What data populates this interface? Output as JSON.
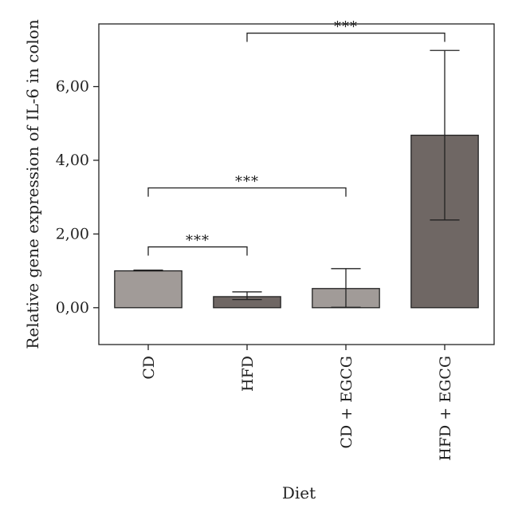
{
  "chart_data": {
    "type": "bar",
    "title": "",
    "xlabel": "Diet",
    "ylabel": "Relative gene expression of IL-6 in colon",
    "categories": [
      "CD",
      "HFD",
      "CD + EGCG",
      "HFD + EGCG"
    ],
    "series": [
      {
        "values": [
          1.0,
          0.3,
          0.52,
          4.68
        ],
        "error_upper": [
          1.02,
          0.43,
          1.06,
          6.98
        ],
        "error_lower": [
          1.0,
          0.22,
          0.01,
          2.38
        ]
      }
    ],
    "bar_colors": [
      "#a19b98",
      "#6f6764",
      "#a19b98",
      "#6f6764"
    ],
    "ylim": [
      -1.0,
      7.7
    ],
    "yticks": [
      0,
      2,
      4,
      6
    ],
    "ytick_labels": [
      "0,00",
      "2,00",
      "4,00",
      "6,00"
    ],
    "grid": false,
    "legend": "none",
    "significance": [
      {
        "from": 0,
        "to": 1,
        "y": 1.65,
        "label": "***"
      },
      {
        "from": 0,
        "to": 2,
        "y": 3.25,
        "label": "***"
      },
      {
        "from": 1,
        "to": 3,
        "y": 7.45,
        "label": "***"
      }
    ]
  }
}
